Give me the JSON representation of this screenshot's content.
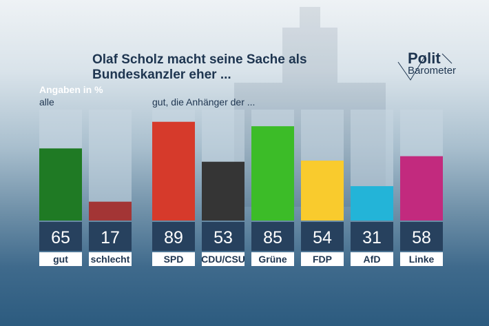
{
  "header": {
    "title_line1": "Olaf Scholz macht seine Sache als",
    "title_line2": "Bundeskanzler eher ..."
  },
  "logo": {
    "polit": "Polit",
    "barometer": "Barometer"
  },
  "labels": {
    "unit": "Angaben in %",
    "group_all": "alle",
    "group_parties": "gut, die Anhänger der ..."
  },
  "colors": {
    "track": "#c9d7e1",
    "value_box": "#27415e",
    "label_box": "#ffffff"
  },
  "chart_data": {
    "type": "bar",
    "ylim": [
      0,
      100
    ],
    "groups": [
      {
        "name": "alle",
        "categories": [
          "gut",
          "schlecht"
        ],
        "values": [
          65,
          17
        ],
        "colors": [
          "#1f7a24",
          "#a33535"
        ]
      },
      {
        "name": "gut, die Anhänger der ...",
        "categories": [
          "SPD",
          "CDU/CSU",
          "Grüne",
          "FDP",
          "AfD",
          "Linke"
        ],
        "values": [
          89,
          53,
          85,
          54,
          31,
          58
        ],
        "colors": [
          "#d63a2b",
          "#353535",
          "#3cbc28",
          "#f9cb2d",
          "#23b4d8",
          "#c22a7e"
        ]
      }
    ]
  }
}
